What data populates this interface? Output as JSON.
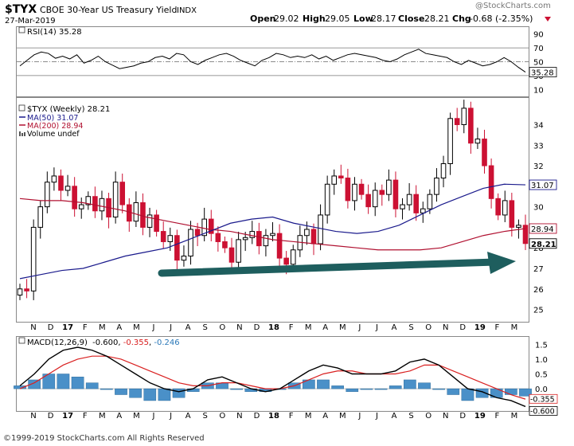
{
  "header": {
    "symbol": "$TYX",
    "name": "CBOE 30-Year US Treasury Yield",
    "exchange": "INDX",
    "date": "27-Mar-2019",
    "open_label": "Open",
    "open": "29.02",
    "high_label": "High",
    "high": "29.05",
    "low_label": "Low",
    "low": "28.17",
    "close_label": "Close",
    "close": "28.21",
    "chg_label": "Chg",
    "chg": "-0.68 (-2.35%)",
    "watermark": "@StockCharts.com"
  },
  "footer": {
    "copyright": "©1999-2019 StockCharts.com All Rights Reserved"
  },
  "colors": {
    "up": "#000000",
    "down": "#cc1133",
    "ma50": "#1a1a8c",
    "ma200": "#b01030",
    "macd_line": "#000000",
    "macd_signal": "#d92020",
    "hist": "#4a90c8",
    "arrow": "#1e5e5e"
  },
  "chart_data": [
    {
      "type": "line",
      "panel": "rsi",
      "legend": "RSI(14) 35.28",
      "y_ticks": [
        10,
        30,
        50,
        70,
        90
      ],
      "ylim": [
        0,
        100
      ],
      "last_value_label": "35.28",
      "values": [
        44,
        52,
        60,
        64,
        62,
        55,
        58,
        54,
        60,
        48,
        52,
        58,
        50,
        45,
        40,
        42,
        44,
        48,
        50,
        56,
        58,
        54,
        62,
        60,
        50,
        46,
        52,
        56,
        60,
        62,
        58,
        52,
        48,
        44,
        52,
        56,
        62,
        60,
        56,
        58,
        56,
        60,
        54,
        58,
        52,
        56,
        60,
        62,
        60,
        58,
        56,
        52,
        50,
        54,
        60,
        64,
        68,
        62,
        60,
        58,
        56,
        50,
        46,
        52,
        48,
        44,
        46,
        50,
        56,
        50,
        42,
        35
      ]
    },
    {
      "type": "candlestick",
      "panel": "price",
      "legend": [
        "$TYX (Weekly) 28.21",
        "MA(50) 31.07",
        "MA(200) 28.94",
        "Volume undef"
      ],
      "y_ticks": [
        25,
        26,
        27,
        28,
        29,
        30,
        31,
        32,
        33,
        34
      ],
      "ylim": [
        24.4,
        35.3
      ],
      "x_labels": [
        "N",
        "D",
        "17",
        "F",
        "M",
        "A",
        "M",
        "J",
        "J",
        "A",
        "S",
        "O",
        "N",
        "D",
        "18",
        "F",
        "M",
        "A",
        "M",
        "J",
        "J",
        "A",
        "S",
        "O",
        "N",
        "D",
        "19",
        "F",
        "M"
      ],
      "price_tags": [
        {
          "label": "31.07",
          "value": 31.07,
          "series": "MA(50)"
        },
        {
          "label": "28.94",
          "value": 28.94,
          "series": "MA(200)"
        },
        {
          "label": "28.21",
          "value": 28.21,
          "series": "close"
        }
      ],
      "closes": [
        26.0,
        25.9,
        29.0,
        30.0,
        31.2,
        31.5,
        30.8,
        31.0,
        29.9,
        30.1,
        30.5,
        29.8,
        30.4,
        29.5,
        31.2,
        30.1,
        29.3,
        30.2,
        29.0,
        29.6,
        28.8,
        28.3,
        28.6,
        27.4,
        27.6,
        28.9,
        28.6,
        29.4,
        28.7,
        28.3,
        28.0,
        27.3,
        28.4,
        28.5,
        28.8,
        28.1,
        28.6,
        28.7,
        27.5,
        27.2,
        27.9,
        28.6,
        28.9,
        28.2,
        29.6,
        31.1,
        31.5,
        31.4,
        30.3,
        31.1,
        30.6,
        30.0,
        30.8,
        30.6,
        31.3,
        29.9,
        30.1,
        30.6,
        29.7,
        29.9,
        30.6,
        31.4,
        32.1,
        34.3,
        34.0,
        34.8,
        33.1,
        33.3,
        32.0,
        30.4,
        29.6,
        30.3,
        29.0,
        29.1,
        28.21
      ],
      "ma50": [
        26.5,
        26.7,
        26.9,
        27.0,
        27.3,
        27.6,
        27.8,
        28.0,
        28.4,
        28.8,
        29.2,
        29.4,
        29.5,
        29.2,
        29.0,
        28.8,
        28.7,
        28.8,
        29.1,
        29.6,
        30.1,
        30.5,
        30.9,
        31.1,
        31.07
      ],
      "ma200": [
        30.4,
        30.3,
        30.3,
        30.2,
        30.0,
        29.8,
        29.5,
        29.3,
        29.1,
        28.9,
        28.8,
        28.6,
        28.4,
        28.3,
        28.2,
        28.1,
        28.0,
        27.9,
        27.9,
        27.9,
        28.0,
        28.3,
        28.6,
        28.8,
        28.94
      ]
    },
    {
      "type": "line",
      "panel": "macd",
      "legend": "MACD(12,26,9) -0.600, -0.355, -0.246",
      "legend_parts": [
        "MACD(12,26,9)",
        "-0.600",
        "-0.355",
        "-0.246"
      ],
      "y_ticks": [
        0.0,
        0.5,
        1.0,
        1.5
      ],
      "ylim": [
        -0.75,
        1.75
      ],
      "last_labels": [
        "-0.355",
        "-0.600"
      ],
      "macd": [
        0.1,
        0.5,
        1.0,
        1.3,
        1.4,
        1.3,
        1.1,
        0.8,
        0.5,
        0.2,
        0.0,
        -0.1,
        0.0,
        0.3,
        0.4,
        0.2,
        0.0,
        -0.1,
        0.0,
        0.3,
        0.6,
        0.8,
        0.7,
        0.5,
        0.5,
        0.5,
        0.6,
        0.9,
        1.0,
        0.8,
        0.4,
        0.0,
        -0.1,
        -0.3,
        -0.4,
        -0.6
      ],
      "signal": [
        0.0,
        0.2,
        0.5,
        0.8,
        1.0,
        1.1,
        1.1,
        1.0,
        0.8,
        0.6,
        0.4,
        0.2,
        0.1,
        0.1,
        0.2,
        0.2,
        0.1,
        0.0,
        0.0,
        0.1,
        0.3,
        0.5,
        0.6,
        0.6,
        0.5,
        0.5,
        0.5,
        0.6,
        0.8,
        0.8,
        0.6,
        0.4,
        0.2,
        0.0,
        -0.2,
        -0.35
      ],
      "histogram": [
        0.1,
        0.3,
        0.5,
        0.5,
        0.4,
        0.2,
        0.0,
        -0.2,
        -0.3,
        -0.4,
        -0.4,
        -0.3,
        -0.1,
        0.2,
        0.2,
        0.0,
        -0.1,
        -0.1,
        0.0,
        0.2,
        0.3,
        0.3,
        0.1,
        -0.1,
        0.0,
        0.0,
        0.1,
        0.3,
        0.2,
        0.0,
        -0.2,
        -0.4,
        -0.3,
        -0.3,
        -0.2,
        -0.25
      ]
    }
  ]
}
